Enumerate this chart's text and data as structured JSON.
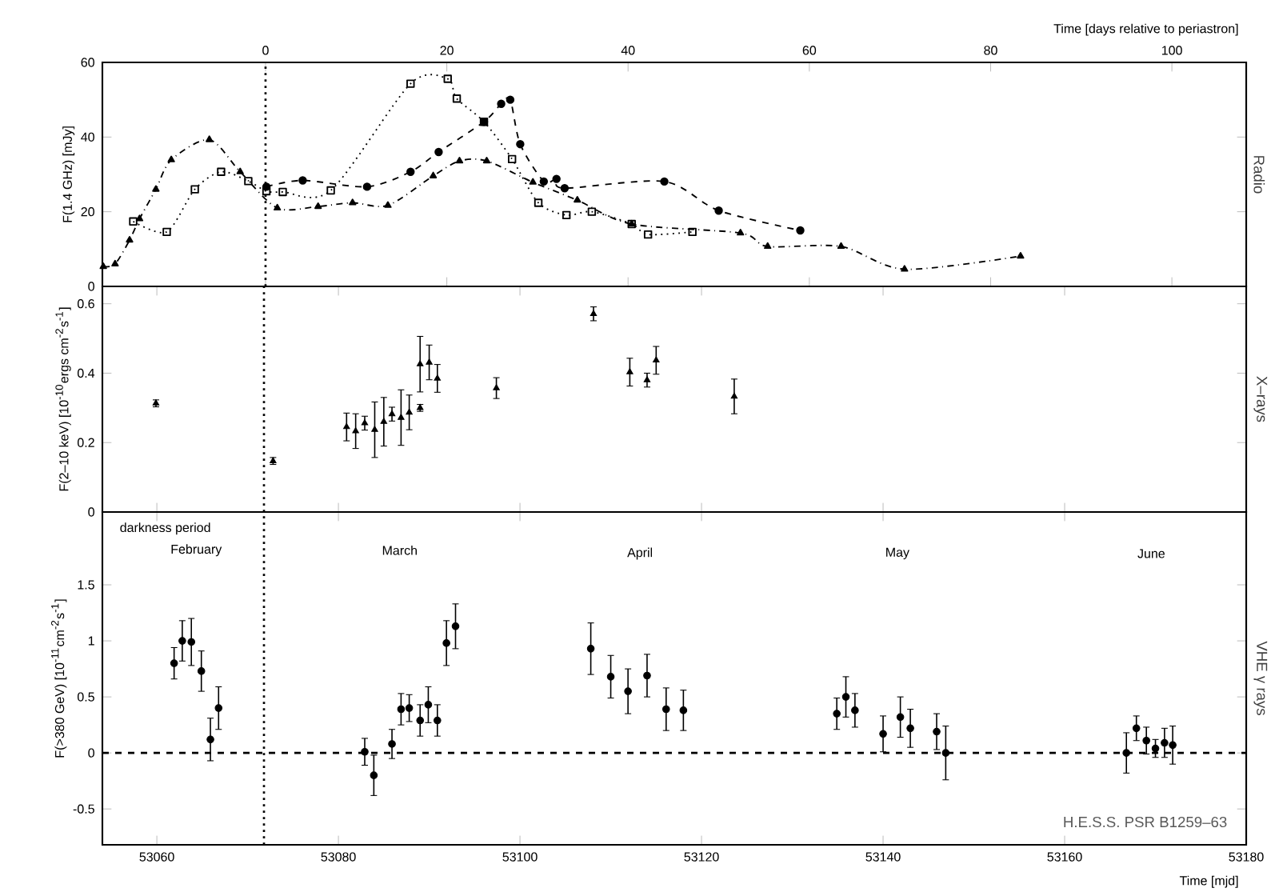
{
  "chart_data": [
    {
      "type": "line",
      "xlabel": "Time [days relative to periastron]",
      "ylabel": "F(1.4 GHz) [mJy]",
      "y2label": "Radio",
      "xlim": [
        -18,
        108.2
      ],
      "xticks": [
        0,
        20,
        40,
        60,
        80,
        100
      ],
      "ylim": [
        0,
        60
      ],
      "yticks": [
        0,
        20,
        40,
        60
      ],
      "ref_lines": [
        {
          "axis": "x",
          "value": 0,
          "line_style": "dotted"
        }
      ],
      "series": [
        {
          "color": "#000000",
          "marker": "square",
          "line_style": "dotted",
          "x": [
            -14.6,
            -10.9,
            -7.8,
            -4.9,
            -1.9,
            0.1,
            1.9,
            7.2,
            16,
            20.1,
            21.1,
            24.1,
            27.2,
            30.1,
            33.2,
            36,
            40.4,
            42.2,
            47.1
          ],
          "values": [
            17.4,
            14.6,
            26,
            30.7,
            28.2,
            25.5,
            25.3,
            25.7,
            54.3,
            55.6,
            50.3,
            44.1,
            34.1,
            22.4,
            19.1,
            20,
            16.7,
            13.9,
            14.6
          ]
        },
        {
          "color": "#000000",
          "marker": "circle",
          "line_style": "dashed",
          "x": [
            0.1,
            4.1,
            11.2,
            16,
            19.1,
            24.1,
            26,
            27,
            28.1,
            30.7,
            32.1,
            33,
            44,
            50,
            59
          ],
          "values": [
            26.7,
            28.4,
            26.7,
            30.7,
            36,
            44.1,
            48.9,
            50,
            38.1,
            28.1,
            28.8,
            26.3,
            28.1,
            20.3,
            15
          ]
        },
        {
          "color": "#000000",
          "marker": "triangle",
          "line_style": "dashdot",
          "x": [
            -17.9,
            -16.6,
            -15,
            -13.9,
            -12.1,
            -10.4,
            -6.2,
            -2.8,
            1.3,
            5.8,
            9.6,
            13.5,
            18.5,
            21.4,
            24.4,
            29.5,
            34.4,
            40.4,
            52.4,
            55.4,
            63.5,
            70.5,
            83.3
          ],
          "values": [
            5.3,
            6,
            12.4,
            18.1,
            26,
            33.9,
            39.3,
            30.7,
            21,
            21.4,
            22.4,
            21.7,
            29.6,
            33.6,
            33.6,
            27.9,
            23.1,
            16.7,
            14.3,
            10.7,
            10.7,
            4.6,
            8.1
          ]
        }
      ]
    },
    {
      "type": "scatter",
      "ylabel": "F(2–10 keV) [10$^{-10}$ergs cm$^{-2}$s$^{-1}$]",
      "y2label": "X–rays",
      "xlim": [
        53054,
        53180
      ],
      "xticks": [
        53060,
        53080,
        53100,
        53120,
        53140,
        53160,
        53180
      ],
      "ylim": [
        0,
        0.65
      ],
      "yticks": [
        0,
        0.2,
        0.4,
        0.6
      ],
      "tick_labels": "y",
      "marker": "triangle",
      "color": "#000000",
      "ref_lines": [
        {
          "axis": "x",
          "value": 53071.8,
          "line_style": "dotted"
        }
      ],
      "x": [
        53059.9,
        53072.8,
        53080.9,
        53081.9,
        53082.9,
        53084,
        53085,
        53085.9,
        53086.9,
        53087.8,
        53089,
        53089,
        53090,
        53090.9,
        53097.4,
        53108.1,
        53112.1,
        53114,
        53115,
        53123.6
      ],
      "values": [
        0.313,
        0.147,
        0.245,
        0.233,
        0.256,
        0.237,
        0.26,
        0.282,
        0.272,
        0.287,
        0.426,
        0.3,
        0.431,
        0.385,
        0.357,
        0.571,
        0.403,
        0.38,
        0.437,
        0.333
      ],
      "errors": [
        0.01,
        0.01,
        0.04,
        0.05,
        0.02,
        0.08,
        0.07,
        0.02,
        0.08,
        0.05,
        0.08,
        0.01,
        0.05,
        0.04,
        0.03,
        0.02,
        0.04,
        0.02,
        0.04,
        0.05
      ]
    },
    {
      "type": "scatter",
      "xlabel": "Time [mjd]",
      "ylabel": "F(>380 GeV) [10$^{-11}$cm$^{-2}$s$^{-1}$]",
      "y2label": "VHE γ rays",
      "xlim": [
        53054,
        53180
      ],
      "xticks": [
        53060,
        53080,
        53100,
        53120,
        53140,
        53160,
        53180
      ],
      "ylim": [
        -0.82,
        2.15
      ],
      "yticks": [
        -0.5,
        0,
        0.5,
        1,
        1.5
      ],
      "marker": "circle",
      "color": "#000000",
      "ref_lines": [
        {
          "axis": "x",
          "value": 53071.8,
          "line_style": "dotted"
        },
        {
          "axis": "y",
          "value": 0,
          "line_style": "dashed"
        }
      ],
      "x": [
        53061.9,
        53062.8,
        53063.8,
        53064.9,
        53065.9,
        53066.8,
        53082.9,
        53083.9,
        53085.9,
        53086.9,
        53087.8,
        53089,
        53089.9,
        53090.9,
        53091.9,
        53092.9,
        53107.8,
        53110,
        53111.9,
        53114,
        53116.1,
        53118,
        53134.9,
        53135.9,
        53136.9,
        53140,
        53141.9,
        53143,
        53145.9,
        53146.9,
        53166.8,
        53167.9,
        53169,
        53170,
        53171,
        53171.9
      ],
      "values": [
        0.8,
        1.0,
        0.99,
        0.73,
        0.12,
        0.4,
        0.01,
        -0.2,
        0.08,
        0.39,
        0.4,
        0.29,
        0.43,
        0.29,
        0.98,
        1.13,
        0.93,
        0.68,
        0.55,
        0.69,
        0.39,
        0.38,
        0.35,
        0.5,
        0.38,
        0.17,
        0.32,
        0.22,
        0.19,
        0,
        0,
        0.22,
        0.11,
        0.04,
        0.09,
        0.07
      ],
      "errors": [
        0.14,
        0.18,
        0.21,
        0.18,
        0.19,
        0.19,
        0.12,
        0.18,
        0.13,
        0.14,
        0.12,
        0.14,
        0.16,
        0.14,
        0.2,
        0.2,
        0.23,
        0.19,
        0.2,
        0.19,
        0.19,
        0.18,
        0.14,
        0.18,
        0.15,
        0.16,
        0.18,
        0.17,
        0.16,
        0.24,
        0.18,
        0.11,
        0.12,
        0.08,
        0.13,
        0.17
      ],
      "annotations": [
        "darkness period",
        "February",
        "March",
        "April",
        "May",
        "June",
        "H.E.S.S. PSR B1259–63"
      ]
    }
  ]
}
